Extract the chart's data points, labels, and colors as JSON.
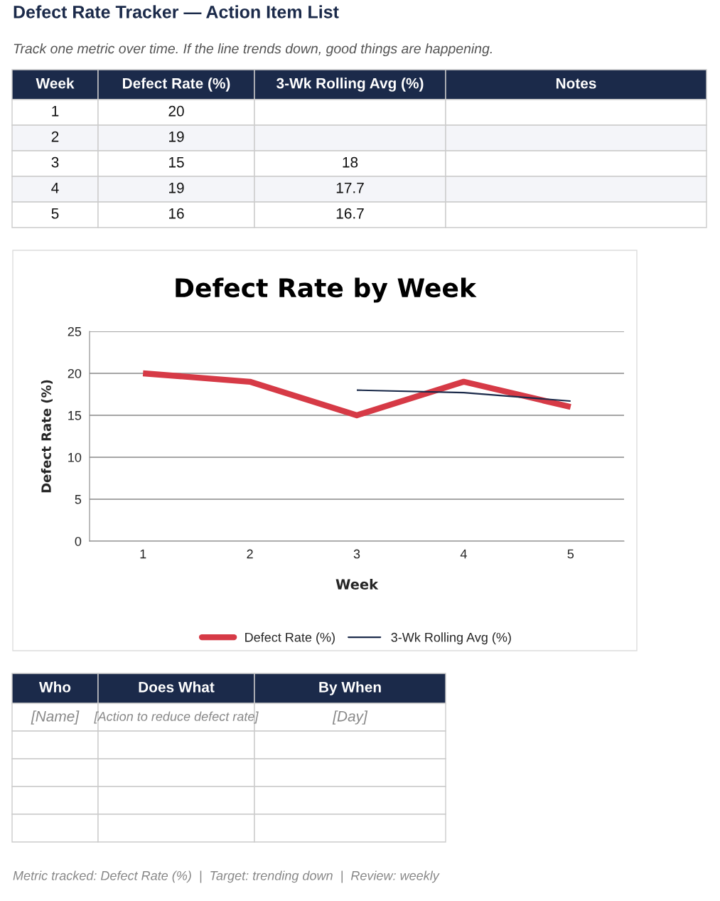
{
  "chart_data": {
    "type": "line",
    "title": "Defect Rate Tracker — Action Item List",
    "subtitle": "Track one metric over time. If the line trends down, good things are happening.",
    "xlabel": "Week",
    "ylabel": "Defect Rate (%)",
    "categories": [
      "1",
      "2",
      "3",
      "4",
      "5"
    ],
    "series": [
      {
        "name": "Defect Rate (%)",
        "color": "#d63a46",
        "values": [
          20,
          19,
          15,
          19,
          16
        ]
      },
      {
        "name": "3-Wk Rolling Avg (%)",
        "color": "#1b2a4a",
        "values": [
          null,
          null,
          18,
          17.7,
          16.7
        ]
      }
    ],
    "ylim": [
      0,
      25
    ],
    "yticks": [
      0,
      5,
      10,
      15,
      20,
      25
    ],
    "grid": "y",
    "legend": "bottom",
    "marker": "none",
    "line_style": "solid",
    "annotations": [
      "Notes",
      "Defect Rate by Week",
      "Who",
      "Does What",
      "By When",
      "[Name]",
      "[Action to reduce defect rate]",
      "[Day]",
      "Metric tracked: Defect Rate (%)  |  Target: trending down  |  Review: weekly",
      "20",
      "19",
      "15",
      "19",
      "16",
      "18",
      "17.7",
      "16.7"
    ]
  }
}
